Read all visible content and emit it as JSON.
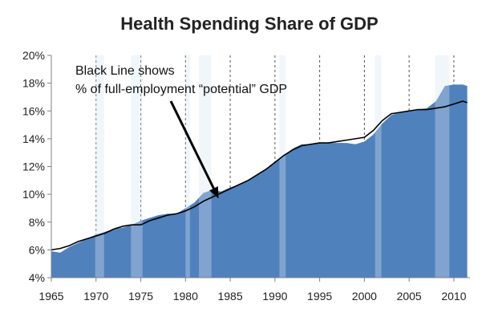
{
  "chart_data": {
    "type": "area",
    "title": "Health Spending Share of GDP",
    "xlabel": "",
    "ylabel": "",
    "xlim": [
      1965,
      2011.8
    ],
    "ylim": [
      4,
      20
    ],
    "x_ticks": [
      1965,
      1970,
      1975,
      1980,
      1985,
      1990,
      1995,
      2000,
      2005,
      2010
    ],
    "x_tick_labels": [
      "1965",
      "1970",
      "1975",
      "1980",
      "1985",
      "1990",
      "1995",
      "2000",
      "2005",
      "2010"
    ],
    "y_ticks": [
      4,
      6,
      8,
      10,
      12,
      14,
      16,
      18,
      20
    ],
    "y_tick_labels": [
      "4%",
      "6%",
      "8%",
      "10%",
      "12%",
      "14%",
      "16%",
      "18%",
      "20%"
    ],
    "grid": {
      "x": true,
      "y": false,
      "x_style": "dashed"
    },
    "recessions": [
      [
        1969.9,
        1970.9
      ],
      [
        1973.9,
        1975.2
      ],
      [
        1980.0,
        1980.5
      ],
      [
        1981.5,
        1982.9
      ],
      [
        1990.5,
        1991.2
      ],
      [
        2001.2,
        2001.9
      ],
      [
        2007.9,
        2009.5
      ]
    ],
    "series": [
      {
        "kind": "area",
        "color": "#4f81bd",
        "x": [
          1965,
          1966,
          1967,
          1968,
          1969,
          1970,
          1971,
          1972,
          1973,
          1974,
          1975,
          1976,
          1977,
          1978,
          1979,
          1980,
          1981,
          1982,
          1983,
          1984,
          1985,
          1986,
          1987,
          1988,
          1989,
          1990,
          1991,
          1992,
          1993,
          1994,
          1995,
          1996,
          1997,
          1998,
          1999,
          2000,
          2001,
          2002,
          2003,
          2004,
          2005,
          2006,
          2007,
          2008,
          2009,
          2010,
          2011,
          2011.5
        ],
        "y": [
          5.9,
          5.8,
          6.2,
          6.5,
          6.8,
          7.1,
          7.3,
          7.5,
          7.6,
          7.8,
          8.1,
          8.3,
          8.5,
          8.6,
          8.6,
          9.0,
          9.4,
          10.1,
          10.3,
          10.2,
          10.5,
          10.7,
          11.0,
          11.4,
          11.8,
          12.3,
          12.8,
          13.3,
          13.6,
          13.6,
          13.7,
          13.7,
          13.7,
          13.7,
          13.6,
          13.8,
          14.3,
          15.1,
          15.7,
          15.9,
          16.0,
          16.1,
          16.2,
          16.7,
          17.8,
          17.9,
          17.9,
          17.8
        ]
      },
      {
        "kind": "line",
        "color": "#000000",
        "x": [
          1965,
          1966,
          1967,
          1968,
          1969,
          1970,
          1971,
          1972,
          1973,
          1974,
          1975,
          1976,
          1977,
          1978,
          1979,
          1980,
          1981,
          1982,
          1983,
          1984,
          1985,
          1986,
          1987,
          1988,
          1989,
          1990,
          1991,
          1992,
          1993,
          1994,
          1995,
          1996,
          1997,
          1998,
          1999,
          2000,
          2001,
          2002,
          2003,
          2004,
          2005,
          2006,
          2007,
          2008,
          2009,
          2010,
          2011,
          2011.5
        ],
        "y": [
          6.0,
          6.1,
          6.3,
          6.6,
          6.8,
          7.0,
          7.2,
          7.5,
          7.7,
          7.8,
          7.8,
          8.1,
          8.3,
          8.5,
          8.6,
          8.8,
          9.1,
          9.5,
          9.8,
          10.1,
          10.4,
          10.7,
          11.0,
          11.4,
          11.8,
          12.3,
          12.8,
          13.2,
          13.5,
          13.6,
          13.7,
          13.7,
          13.8,
          13.9,
          14.0,
          14.1,
          14.6,
          15.3,
          15.8,
          15.9,
          16.0,
          16.1,
          16.1,
          16.2,
          16.3,
          16.5,
          16.7,
          16.6
        ]
      }
    ],
    "annotation": {
      "lines": [
        "Black Line shows",
        "% of full-employment “potential” GDP"
      ],
      "arrow_to": [
        1983.7,
        9.7
      ]
    }
  }
}
